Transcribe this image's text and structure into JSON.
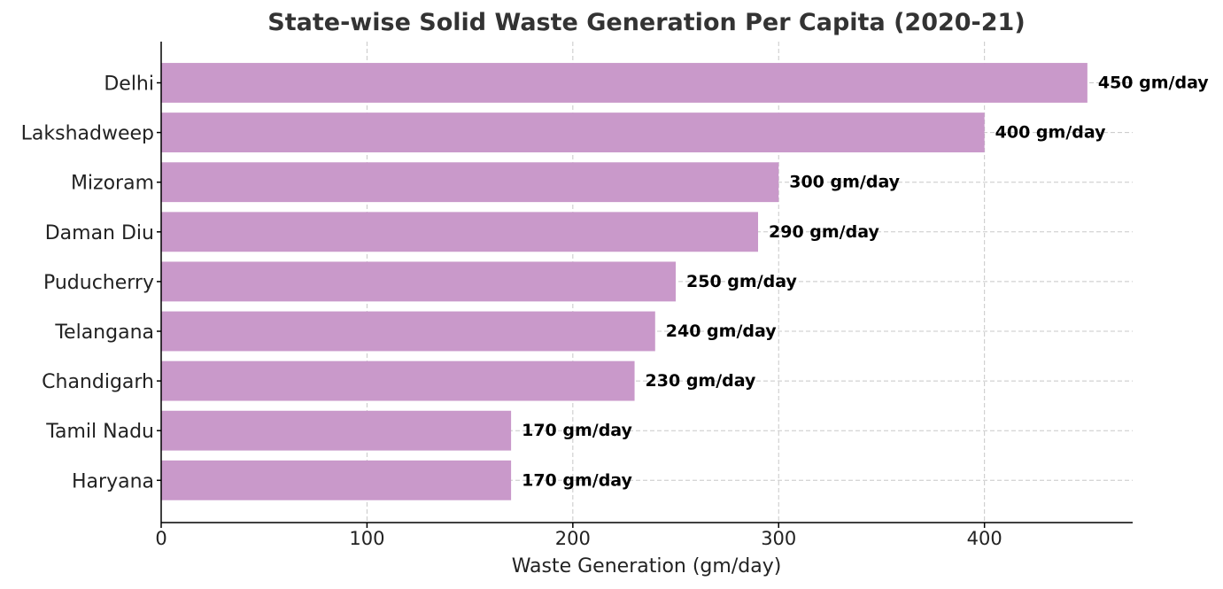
{
  "chart_data": {
    "type": "bar",
    "orientation": "horizontal",
    "title": "State-wise Solid Waste Generation Per Capita (2020-21)",
    "xlabel": "Waste Generation (gm/day)",
    "ylabel": "",
    "categories": [
      "Delhi",
      "Lakshadweep",
      "Mizoram",
      "Daman Diu",
      "Puducherry",
      "Telangana",
      "Chandigarh",
      "Tamil Nadu",
      "Haryana"
    ],
    "values": [
      450,
      400,
      300,
      290,
      250,
      240,
      230,
      170,
      170
    ],
    "data_labels": [
      "450 gm/day",
      "400 gm/day",
      "300 gm/day",
      "290 gm/day",
      "250 gm/day",
      "240 gm/day",
      "230 gm/day",
      "170 gm/day",
      "170 gm/day"
    ],
    "xlim": [
      0,
      472
    ],
    "xticks": [
      0,
      100,
      200,
      300,
      400
    ],
    "xtick_labels": [
      "0",
      "100",
      "200",
      "300",
      "400"
    ],
    "grid": true,
    "bar_color": "#c999ca"
  }
}
